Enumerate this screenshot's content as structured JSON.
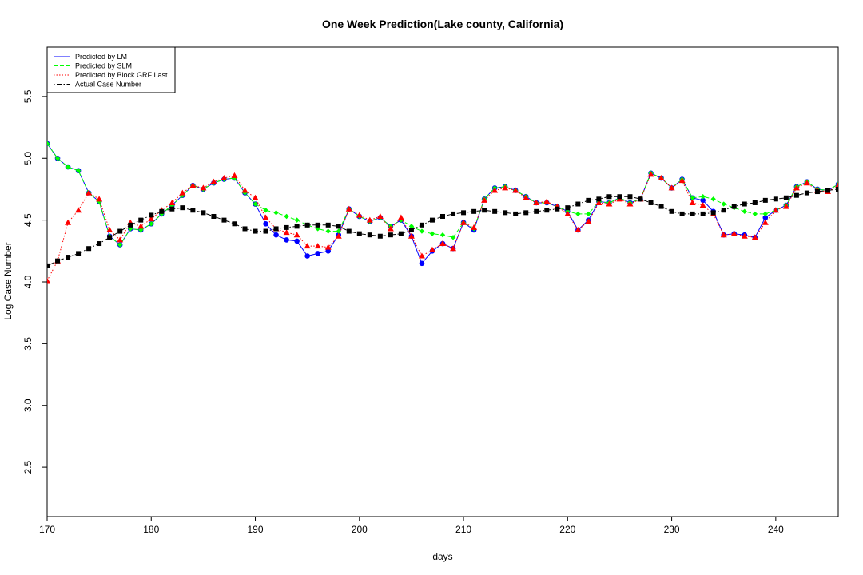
{
  "chart_data": {
    "type": "line",
    "title": "One Week Prediction(Lake county, California)",
    "xlabel": "days",
    "ylabel": "Log Case Number",
    "xlim": [
      170,
      246
    ],
    "ylim": [
      2.1,
      5.9
    ],
    "x_ticks": [
      "170",
      "180",
      "190",
      "200",
      "210",
      "220",
      "230",
      "240"
    ],
    "x_tick_values": [
      170,
      180,
      190,
      200,
      210,
      220,
      230,
      240
    ],
    "y_ticks": [
      "2.5",
      "3.0",
      "3.5",
      "4.0",
      "4.5",
      "5.0",
      "5.5"
    ],
    "y_tick_values": [
      2.5,
      3.0,
      3.5,
      4.0,
      4.5,
      5.0,
      5.5
    ],
    "grid": false,
    "legend_position": "top-left",
    "x": [
      170,
      171,
      172,
      173,
      174,
      175,
      176,
      177,
      178,
      179,
      180,
      181,
      182,
      183,
      184,
      185,
      186,
      187,
      188,
      189,
      190,
      191,
      192,
      193,
      194,
      195,
      196,
      197,
      198,
      199,
      200,
      201,
      202,
      203,
      204,
      205,
      206,
      207,
      208,
      209,
      210,
      211,
      212,
      213,
      214,
      215,
      216,
      217,
      218,
      219,
      220,
      221,
      222,
      223,
      224,
      225,
      226,
      227,
      228,
      229,
      230,
      231,
      232,
      233,
      234,
      235,
      236,
      237,
      238,
      239,
      240,
      241,
      242,
      243,
      244,
      245,
      246
    ],
    "series": [
      {
        "name": "Predicted by LM",
        "color": "#0000ff",
        "line_style": "solid",
        "marker": "circle",
        "values": [
          5.12,
          5.0,
          4.93,
          4.9,
          4.72,
          4.65,
          4.37,
          4.3,
          4.43,
          4.42,
          4.47,
          4.55,
          4.62,
          4.7,
          4.78,
          4.75,
          4.8,
          4.83,
          4.84,
          4.72,
          4.63,
          4.47,
          4.38,
          4.34,
          4.33,
          4.21,
          4.23,
          4.25,
          4.38,
          4.59,
          4.53,
          4.49,
          4.52,
          4.45,
          4.5,
          4.37,
          4.15,
          4.25,
          4.31,
          4.27,
          4.48,
          4.42,
          4.67,
          4.76,
          4.77,
          4.74,
          4.69,
          4.64,
          4.64,
          4.61,
          4.57,
          4.42,
          4.5,
          4.65,
          4.64,
          4.68,
          4.64,
          4.67,
          4.88,
          4.84,
          4.76,
          4.83,
          4.68,
          4.66,
          4.57,
          4.38,
          4.39,
          4.38,
          4.36,
          4.52,
          4.58,
          4.62,
          4.77,
          4.81,
          4.75,
          4.74,
          4.79
        ]
      },
      {
        "name": "Predicted by SLM",
        "color": "#00ff00",
        "line_style": "dashed",
        "marker": "diamond",
        "values": [
          5.12,
          5.0,
          4.93,
          4.9,
          4.72,
          4.65,
          4.37,
          4.3,
          4.43,
          4.42,
          4.47,
          4.55,
          4.62,
          4.7,
          4.78,
          4.75,
          4.8,
          4.83,
          4.84,
          4.72,
          4.63,
          4.58,
          4.56,
          4.53,
          4.5,
          4.46,
          4.43,
          4.41,
          4.41,
          4.59,
          4.53,
          4.49,
          4.52,
          4.45,
          4.5,
          4.45,
          4.41,
          4.39,
          4.38,
          4.36,
          4.48,
          4.43,
          4.67,
          4.76,
          4.77,
          4.74,
          4.69,
          4.64,
          4.64,
          4.61,
          4.57,
          4.55,
          4.55,
          4.65,
          4.64,
          4.68,
          4.64,
          4.67,
          4.88,
          4.84,
          4.76,
          4.83,
          4.68,
          4.69,
          4.67,
          4.63,
          4.6,
          4.57,
          4.55,
          4.55,
          4.58,
          4.62,
          4.77,
          4.81,
          4.75,
          4.74,
          4.79
        ]
      },
      {
        "name": "Predicted by Block GRF Last",
        "color": "#ff0000",
        "line_style": "dotted",
        "marker": "triangle",
        "values": [
          4.01,
          4.17,
          4.48,
          4.58,
          4.72,
          4.67,
          4.42,
          4.34,
          4.48,
          4.45,
          4.51,
          4.58,
          4.64,
          4.72,
          4.78,
          4.76,
          4.81,
          4.84,
          4.86,
          4.74,
          4.68,
          4.52,
          4.43,
          4.4,
          4.38,
          4.29,
          4.29,
          4.28,
          4.37,
          4.59,
          4.54,
          4.5,
          4.53,
          4.43,
          4.52,
          4.37,
          4.21,
          4.26,
          4.31,
          4.27,
          4.48,
          4.44,
          4.66,
          4.74,
          4.76,
          4.74,
          4.68,
          4.64,
          4.65,
          4.61,
          4.55,
          4.42,
          4.49,
          4.64,
          4.63,
          4.67,
          4.63,
          4.67,
          4.87,
          4.84,
          4.76,
          4.82,
          4.64,
          4.62,
          4.55,
          4.38,
          4.39,
          4.37,
          4.36,
          4.48,
          4.58,
          4.61,
          4.76,
          4.8,
          4.74,
          4.73,
          4.78
        ]
      },
      {
        "name": "Actual Case Number",
        "color": "#000000",
        "line_style": "dotdash",
        "marker": "square",
        "values": [
          4.13,
          4.17,
          4.2,
          4.23,
          4.27,
          4.31,
          4.36,
          4.41,
          4.46,
          4.5,
          4.54,
          4.57,
          4.59,
          4.6,
          4.58,
          4.56,
          4.53,
          4.5,
          4.47,
          4.43,
          4.41,
          4.41,
          4.43,
          4.44,
          4.45,
          4.46,
          4.46,
          4.46,
          4.45,
          4.41,
          4.39,
          4.38,
          4.37,
          4.38,
          4.39,
          4.42,
          4.46,
          4.5,
          4.53,
          4.55,
          4.56,
          4.57,
          4.58,
          4.57,
          4.56,
          4.55,
          4.56,
          4.57,
          4.58,
          4.59,
          4.6,
          4.63,
          4.66,
          4.67,
          4.69,
          4.69,
          4.69,
          4.67,
          4.64,
          4.61,
          4.57,
          4.55,
          4.55,
          4.55,
          4.56,
          4.58,
          4.61,
          4.63,
          4.64,
          4.66,
          4.67,
          4.68,
          4.7,
          4.72,
          4.73,
          4.74,
          4.75
        ]
      }
    ]
  }
}
